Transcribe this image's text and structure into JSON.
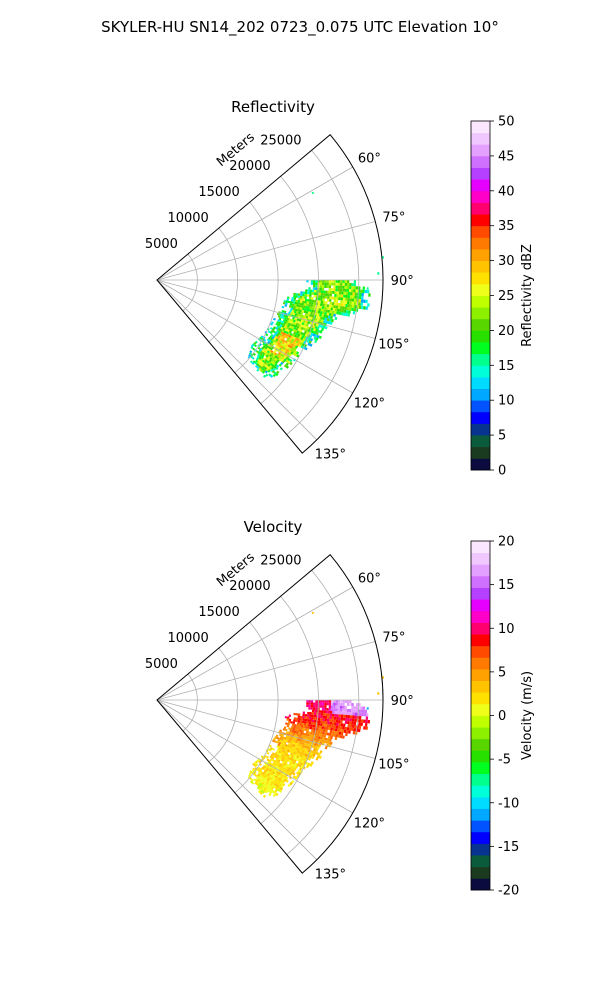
{
  "figure_title": "SKYLER-HU  SN14_202  0723_0.075 UTC Elevation 10°",
  "chart_data": [
    {
      "type": "heatmap",
      "projection": "polar-sector",
      "title": "Reflectivity",
      "range_label": "Meters",
      "theta_range_deg": [
        50,
        140
      ],
      "r_max": 28000,
      "r_ticks": [
        5000,
        10000,
        15000,
        20000,
        25000
      ],
      "r_tick_labels": [
        "5000",
        "10000",
        "15000",
        "20000",
        "25000"
      ],
      "theta_ticks_deg": [
        60,
        75,
        90,
        105,
        120,
        135
      ],
      "theta_tick_labels": [
        "60°",
        "75°",
        "90°",
        "105°",
        "120°",
        "135°"
      ],
      "grid": true,
      "colorbar": {
        "label": "Reflectivity dBZ",
        "min": 0,
        "max": 50,
        "ticks": [
          0,
          5,
          10,
          15,
          20,
          25,
          30,
          35,
          40,
          45,
          50
        ],
        "colors": [
          "#0b0b3f",
          "#1a3b1f",
          "#0a5a3c",
          "#07348f",
          "#0000ff",
          "#0053ff",
          "#00a8ff",
          "#00dcff",
          "#00ffd9",
          "#00ff8c",
          "#00ff20",
          "#27e000",
          "#58d600",
          "#8cf000",
          "#c0ff00",
          "#f0ff1a",
          "#ffe100",
          "#ffc300",
          "#ffa100",
          "#ff7a00",
          "#ff4a00",
          "#ff0000",
          "#ff006e",
          "#ff00c8",
          "#e600ff",
          "#b540ff",
          "#d070ff",
          "#e4a0ff",
          "#f0c8ff",
          "#fbe6ff"
        ]
      },
      "echo_region": {
        "theta_range_deg": [
          90,
          132
        ],
        "r_range_m": [
          14000,
          27000
        ],
        "typical_value": 22,
        "value_range": [
          14,
          30
        ]
      }
    },
    {
      "type": "heatmap",
      "projection": "polar-sector",
      "title": "Velocity",
      "range_label": "Meters",
      "theta_range_deg": [
        50,
        140
      ],
      "r_max": 28000,
      "r_ticks": [
        5000,
        10000,
        15000,
        20000,
        25000
      ],
      "r_tick_labels": [
        "5000",
        "10000",
        "15000",
        "20000",
        "25000"
      ],
      "theta_ticks_deg": [
        60,
        75,
        90,
        105,
        120,
        135
      ],
      "theta_tick_labels": [
        "60°",
        "75°",
        "90°",
        "105°",
        "120°",
        "135°"
      ],
      "grid": true,
      "colorbar": {
        "label": "Velocity (m/s)",
        "min": -20,
        "max": 20,
        "ticks": [
          -20,
          -15,
          -10,
          -5,
          0,
          5,
          10,
          15,
          20
        ],
        "colors": [
          "#0b0b3f",
          "#1a3b1f",
          "#0a5a3c",
          "#07348f",
          "#0000ff",
          "#0053ff",
          "#00a8ff",
          "#00dcff",
          "#00ffd9",
          "#00ff8c",
          "#00ff20",
          "#27e000",
          "#58d600",
          "#8cf000",
          "#c0ff00",
          "#f0ff1a",
          "#ffe100",
          "#ffc300",
          "#ffa100",
          "#ff7a00",
          "#ff4a00",
          "#ff0000",
          "#ff006e",
          "#ff00c8",
          "#e600ff",
          "#b540ff",
          "#d070ff",
          "#e4a0ff",
          "#f0c8ff",
          "#fbe6ff"
        ]
      },
      "echo_region": {
        "theta_range_deg": [
          90,
          132
        ],
        "r_range_m": [
          14000,
          27000
        ],
        "inner_value": 1,
        "outer_value": 10,
        "far_value": 16
      }
    }
  ]
}
